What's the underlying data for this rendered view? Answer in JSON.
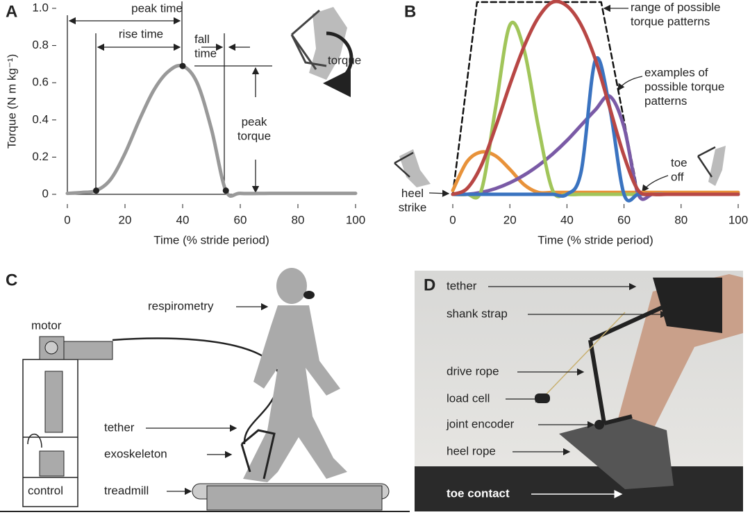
{
  "chart_data": [
    {
      "type": "line",
      "panel_label": "A",
      "xlabel": "Time (% stride period)",
      "ylabel": "Torque (N m kg⁻¹)",
      "x": [
        0,
        5,
        10,
        15,
        20,
        25,
        30,
        35,
        40,
        45,
        50,
        55,
        60,
        70,
        80,
        90,
        100
      ],
      "series": [
        {
          "color": "#999999",
          "values": [
            0.005,
            0.01,
            0.02,
            0.08,
            0.22,
            0.4,
            0.56,
            0.66,
            0.69,
            0.6,
            0.35,
            0.02,
            0.005,
            0.005,
            0.005,
            0.005,
            0.005
          ]
        }
      ],
      "marked_x": [
        10,
        40,
        55
      ],
      "xlim": [
        0,
        100
      ],
      "ylim": [
        0,
        1
      ],
      "xticks": [
        0,
        20,
        40,
        60,
        80,
        100
      ],
      "yticks": [
        0,
        0.2,
        0.4,
        0.6,
        0.8,
        {
          "value": 1,
          "label": "1.0"
        }
      ],
      "annotations": [
        "peak time",
        "rise time",
        "fall\ntime",
        "peak\ntorque",
        "torque"
      ]
    },
    {
      "type": "line",
      "panel_label": "B",
      "xlabel": "Time (% stride period)",
      "x": [
        0,
        5,
        10,
        15,
        20,
        25,
        30,
        35,
        40,
        45,
        50,
        55,
        60,
        65,
        70,
        75,
        80,
        85,
        90,
        95,
        100
      ],
      "series": [
        {
          "color": "#111111",
          "dashed": true,
          "x": [
            0,
            8.5,
            52,
            65
          ],
          "values": [
            0,
            1,
            1,
            0
          ]
        },
        {
          "color": "#e8923a",
          "values": [
            0.02,
            0.17,
            0.22,
            0.2,
            0.13,
            0.05,
            0.01,
            0.01,
            0.01,
            0.01,
            0.01,
            0.01,
            0.01,
            0.01,
            0.01,
            0.01,
            0.01,
            0.01,
            0.01,
            0.01,
            0.01
          ]
        },
        {
          "color": "#7a5aa6",
          "values": [
            0,
            0,
            0.01,
            0.03,
            0.06,
            0.1,
            0.15,
            0.21,
            0.28,
            0.36,
            0.44,
            0.51,
            0.35,
            0,
            0,
            0,
            0,
            0,
            0,
            0,
            0
          ]
        },
        {
          "color": "#a1c55a",
          "values": [
            0,
            0,
            0.02,
            0.45,
            0.88,
            0.75,
            0.35,
            0.02,
            0,
            0,
            0,
            0,
            0,
            0,
            0,
            0,
            0,
            0,
            0,
            0,
            0
          ]
        },
        {
          "color": "#3a73c0",
          "values": [
            0,
            0,
            0,
            0,
            0,
            0,
            0,
            0,
            0,
            0.12,
            0.7,
            0.45,
            0,
            0,
            0,
            0,
            0,
            0,
            0,
            0,
            0
          ]
        },
        {
          "color": "#b84745",
          "values": [
            0,
            0.03,
            0.15,
            0.35,
            0.57,
            0.77,
            0.92,
            1,
            0.98,
            0.88,
            0.7,
            0.45,
            0.2,
            0.02,
            0,
            0,
            0,
            0,
            0,
            0,
            0
          ]
        }
      ],
      "xlim": [
        0,
        100
      ],
      "ylim": [
        0,
        1
      ],
      "xticks": [
        0,
        20,
        40,
        60,
        80,
        100
      ],
      "annotations": [
        "range of possible\ntorque patterns",
        "examples of\npossible torque\npatterns",
        "heel\nstrike",
        "toe\noff"
      ]
    }
  ],
  "panel_c": {
    "label": "C",
    "labels": [
      "respirometry",
      "motor",
      "tether",
      "exoskeleton",
      "treadmill",
      "control"
    ]
  },
  "panel_d": {
    "label": "D",
    "labels": [
      "tether",
      "shank strap",
      "drive rope",
      "load cell",
      "joint encoder",
      "heel rope",
      "toe contact"
    ]
  }
}
